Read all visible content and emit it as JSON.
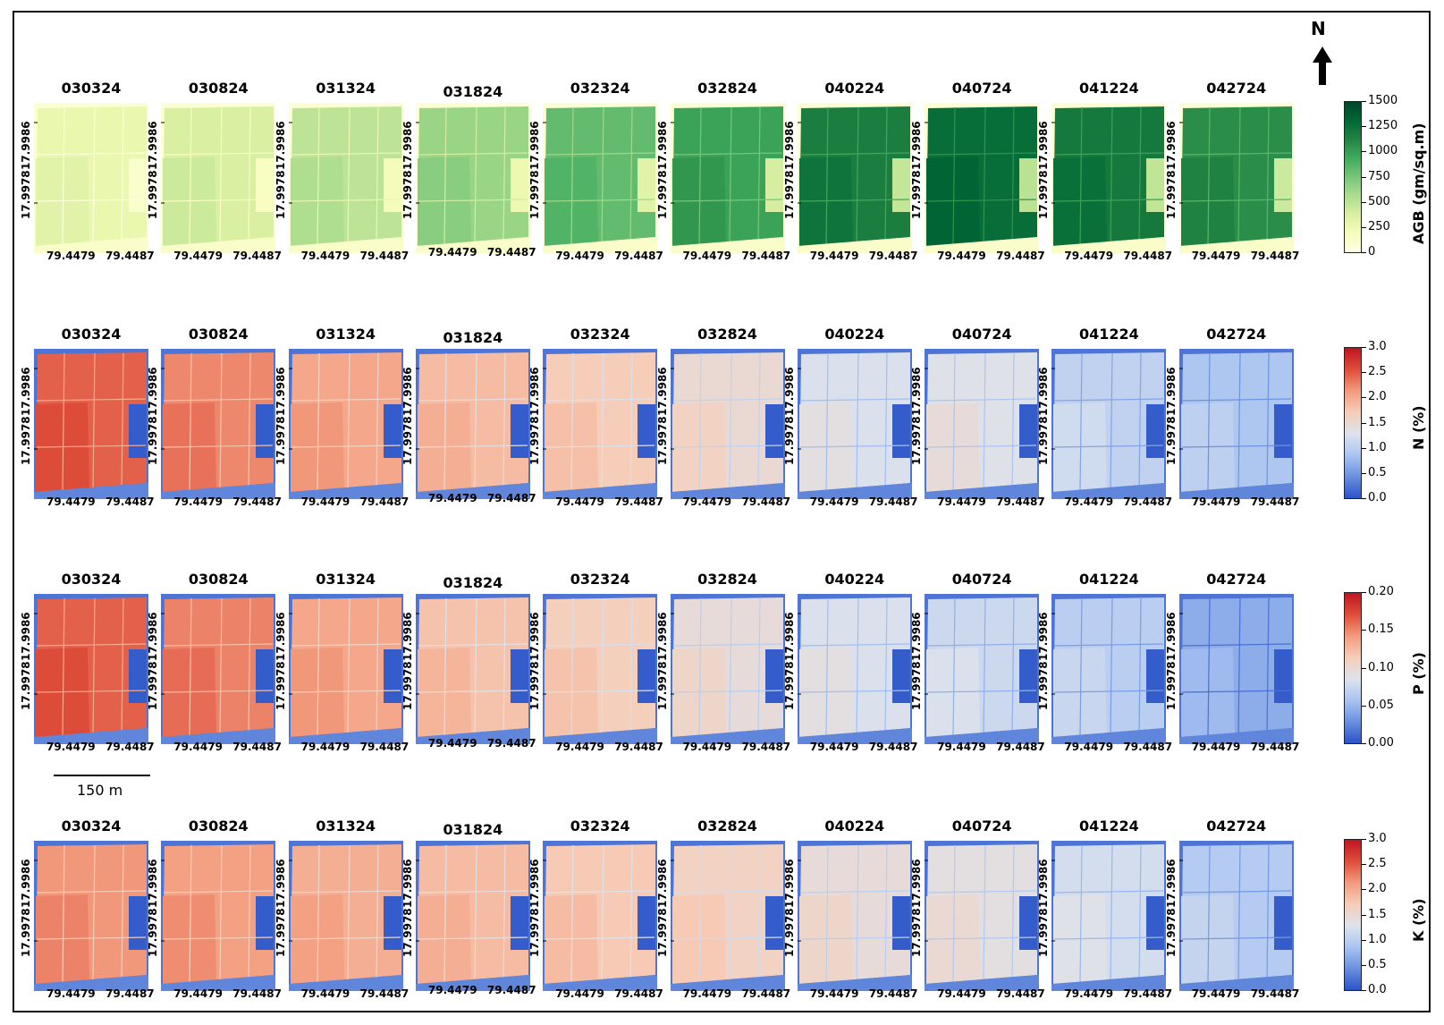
{
  "dates": [
    "030324",
    "030824",
    "031324",
    "031824",
    "032324",
    "032824",
    "040224",
    "040724",
    "041224",
    "042724"
  ],
  "lat_labels": [
    "17.9986",
    "17.9978"
  ],
  "lon_labels": [
    "79.4479",
    "79.4487"
  ],
  "north_label": "N",
  "scale_label": "150 m",
  "rows": [
    {
      "key": "agb",
      "colorbar_label": "AGB (gm/sq.m)",
      "ticks": [
        "1500",
        "1250",
        "1000",
        "750",
        "500",
        "250",
        "0"
      ],
      "colormap": [
        "#ffffe5",
        "#f7fcb9",
        "#d9f0a3",
        "#addd8e",
        "#78c679",
        "#41ab5d",
        "#238443",
        "#006837",
        "#004529"
      ],
      "field_values": [
        0.18,
        0.25,
        0.33,
        0.42,
        0.55,
        0.65,
        0.78,
        0.85,
        0.8,
        0.72
      ]
    },
    {
      "key": "n",
      "colorbar_label": "N (%)",
      "ticks": [
        "3.0",
        "2.5",
        "2.0",
        "1.5",
        "1.0",
        "0.5",
        "0.0"
      ],
      "colormap": [
        "#2b54c8",
        "#6a8fe0",
        "#a9c4f2",
        "#dde3ec",
        "#f6cdb7",
        "#f39b7d",
        "#de4d3a",
        "#c01420"
      ],
      "field_values": [
        0.82,
        0.75,
        0.68,
        0.62,
        0.57,
        0.5,
        0.42,
        0.44,
        0.35,
        0.3
      ]
    },
    {
      "key": "p",
      "colorbar_label": "P (%)",
      "ticks": [
        "0.20",
        "0.15",
        "0.10",
        "0.05",
        "0.00"
      ],
      "colormap": [
        "#2b54c8",
        "#6a8fe0",
        "#a9c4f2",
        "#dde3ec",
        "#f6cdb7",
        "#f39b7d",
        "#de4d3a",
        "#c01420"
      ],
      "field_values": [
        0.82,
        0.76,
        0.68,
        0.6,
        0.56,
        0.48,
        0.42,
        0.38,
        0.33,
        0.22
      ]
    },
    {
      "key": "k",
      "colorbar_label": "K (%)",
      "ticks": [
        "3.0",
        "2.5",
        "2.0",
        "1.5",
        "1.0",
        "0.5",
        "0.0"
      ],
      "colormap": [
        "#2b54c8",
        "#6a8fe0",
        "#a9c4f2",
        "#dde3ec",
        "#f6cdb7",
        "#f39b7d",
        "#de4d3a",
        "#c01420"
      ],
      "field_values": [
        0.72,
        0.7,
        0.66,
        0.62,
        0.58,
        0.54,
        0.48,
        0.46,
        0.4,
        0.32
      ]
    }
  ]
}
